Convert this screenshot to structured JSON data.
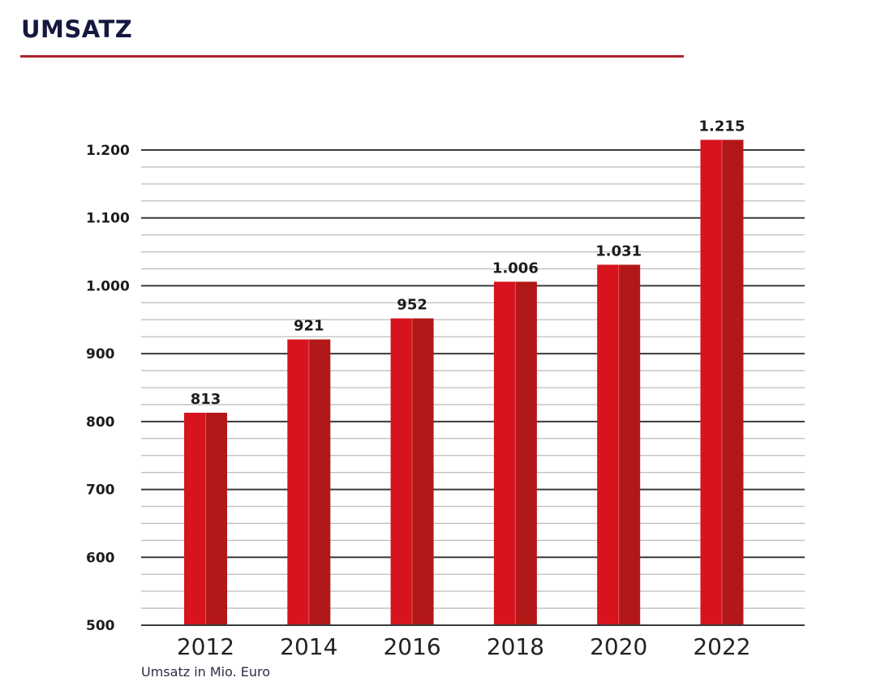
{
  "header": {
    "title": "UMSATZ"
  },
  "footnote": "Umsatz in Mio. Euro",
  "colors": {
    "title": "#15193f",
    "rule": "#b0232f",
    "bar_left": "#d7141e",
    "bar_right": "#b31818",
    "bar_split": "#e4575c",
    "major_grid": "#3a3a3a",
    "minor_grid": "#bdbdbd"
  },
  "chart_data": {
    "type": "bar",
    "title": "UMSATZ",
    "xlabel": "",
    "ylabel": "Umsatz in Mio. Euro",
    "categories": [
      "2012",
      "2014",
      "2016",
      "2018",
      "2020",
      "2022"
    ],
    "values": [
      813,
      921,
      952,
      1006,
      1031,
      1215
    ],
    "value_labels": [
      "813",
      "921",
      "952",
      "1.006",
      "1.031",
      "1.215"
    ],
    "ylim": [
      500,
      1200
    ],
    "yticks": [
      500,
      600,
      700,
      800,
      900,
      1000,
      1100,
      1200
    ],
    "ytick_labels": [
      "500",
      "600",
      "700",
      "800",
      "900",
      "1.000",
      "1.100",
      "1.200"
    ],
    "minor_step": 25,
    "grid": true,
    "legend": "none"
  }
}
